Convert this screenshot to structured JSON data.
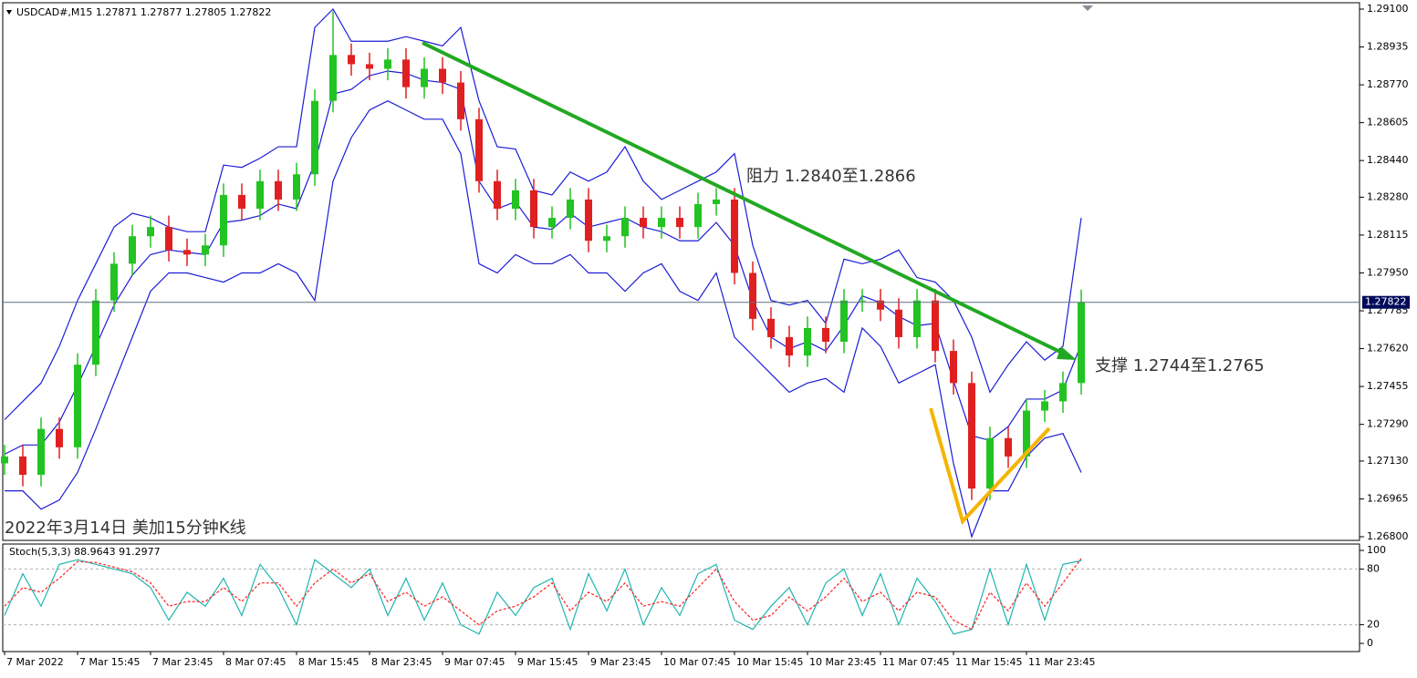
{
  "chart_data": [
    {
      "type": "candlestick",
      "title": "USDCAD#,M15",
      "header_ohlc": [
        1.27871,
        1.27877,
        1.27805,
        1.27822
      ],
      "caption": "2022年3月14日 美加15分钟K线",
      "annotations": [
        "阻力 1.2840至1.2866",
        "支撑 1.2744至1.2765"
      ],
      "current_price": 1.27822,
      "categories": [
        "7 Mar 2022",
        null,
        null,
        null,
        "7 Mar 15:45",
        null,
        null,
        null,
        "7 Mar 23:45",
        null,
        null,
        null,
        "8 Mar 07:45",
        null,
        null,
        null,
        "8 Mar 15:45",
        null,
        null,
        null,
        "8 Mar 23:45",
        null,
        null,
        null,
        "9 Mar 07:45",
        null,
        null,
        null,
        "9 Mar 15:45",
        null,
        null,
        null,
        "9 Mar 23:45",
        null,
        null,
        null,
        "10 Mar 07:45",
        null,
        null,
        null,
        "10 Mar 15:45",
        null,
        null,
        null,
        "10 Mar 23:45",
        null,
        null,
        null,
        "11 Mar 07:45",
        null,
        null,
        null,
        "11 Mar 15:45",
        null,
        null,
        null,
        "11 Mar 23:45",
        null,
        null,
        null
      ],
      "open": [
        1.2712,
        1.2715,
        1.2707,
        1.2727,
        1.2719,
        1.2755,
        1.2783,
        1.2799,
        1.2811,
        1.2815,
        1.2805,
        1.2803,
        1.2807,
        1.2829,
        1.2823,
        1.2835,
        1.2827,
        1.2838,
        1.287,
        1.289,
        1.2886,
        1.2884,
        1.2888,
        1.2876,
        1.2884,
        1.2878,
        1.2862,
        1.2835,
        1.2823,
        1.2831,
        1.2815,
        1.2819,
        1.2827,
        1.2809,
        1.2811,
        1.2819,
        1.2815,
        1.2819,
        1.2815,
        1.2825,
        1.2827,
        1.2795,
        1.2775,
        1.2767,
        1.2759,
        1.2771,
        1.2765,
        1.2783,
        1.2783,
        1.2779,
        1.2767,
        1.2783,
        1.2761,
        1.2747,
        1.2701,
        1.2723,
        1.2715,
        1.2735,
        1.2739,
        1.2747
      ],
      "high": [
        1.272,
        1.272,
        1.2732,
        1.2732,
        1.276,
        1.2788,
        1.2804,
        1.2816,
        1.282,
        1.282,
        1.281,
        1.2812,
        1.2834,
        1.2834,
        1.284,
        1.284,
        1.2843,
        1.2875,
        1.2909,
        1.2895,
        1.2891,
        1.2893,
        1.2893,
        1.2889,
        1.2889,
        1.2883,
        1.2867,
        1.284,
        1.2836,
        1.2836,
        1.2824,
        1.2832,
        1.2832,
        1.2816,
        1.2824,
        1.2824,
        1.2824,
        1.2824,
        1.283,
        1.2832,
        1.2832,
        1.28,
        1.278,
        1.2772,
        1.2776,
        1.2776,
        1.2788,
        1.2788,
        1.2788,
        1.2784,
        1.2788,
        1.2788,
        1.2766,
        1.2752,
        1.2728,
        1.2728,
        1.274,
        1.2744,
        1.2752,
        1.27877
      ],
      "low": [
        1.2707,
        1.2702,
        1.2702,
        1.2714,
        1.2714,
        1.275,
        1.2778,
        1.2794,
        1.2806,
        1.28,
        1.2798,
        1.2798,
        1.2802,
        1.2818,
        1.2818,
        1.2822,
        1.2822,
        1.2833,
        1.2865,
        1.2881,
        1.2879,
        1.2879,
        1.2871,
        1.2871,
        1.2873,
        1.2857,
        1.283,
        1.2818,
        1.2818,
        1.281,
        1.281,
        1.2814,
        1.2804,
        1.2804,
        1.2806,
        1.281,
        1.281,
        1.281,
        1.281,
        1.282,
        1.279,
        1.277,
        1.2762,
        1.2754,
        1.2754,
        1.276,
        1.276,
        1.2778,
        1.2774,
        1.2762,
        1.2762,
        1.2756,
        1.2742,
        1.2696,
        1.2696,
        1.271,
        1.271,
        1.273,
        1.2734,
        1.2742
      ],
      "close": [
        1.2715,
        1.2707,
        1.2727,
        1.2719,
        1.2755,
        1.2783,
        1.2799,
        1.2811,
        1.2815,
        1.2805,
        1.2803,
        1.2807,
        1.2829,
        1.2823,
        1.2835,
        1.2827,
        1.2838,
        1.287,
        1.289,
        1.2886,
        1.2884,
        1.2888,
        1.2876,
        1.2884,
        1.2878,
        1.2862,
        1.2835,
        1.2823,
        1.2831,
        1.2815,
        1.2819,
        1.2827,
        1.2809,
        1.2811,
        1.2819,
        1.2815,
        1.2819,
        1.2815,
        1.2825,
        1.2827,
        1.2795,
        1.2775,
        1.2767,
        1.2759,
        1.2771,
        1.2765,
        1.2783,
        1.2783,
        1.2779,
        1.2767,
        1.2783,
        1.2761,
        1.2747,
        1.2701,
        1.2723,
        1.2715,
        1.2735,
        1.2739,
        1.2747,
        1.27822
      ],
      "up_color": "#22c322",
      "down_color": "#e02020",
      "overlays": [
        {
          "color": "#1c1cd6",
          "values": [
            1.2731,
            1.2739,
            1.2747,
            1.2763,
            1.2783,
            1.2799,
            1.2815,
            1.2821,
            1.2819,
            1.2815,
            1.2813,
            1.2813,
            1.2842,
            1.2841,
            1.2845,
            1.285,
            1.285,
            1.2902,
            1.291,
            1.2896,
            1.2896,
            1.2896,
            1.2898,
            1.2896,
            1.2894,
            1.2902,
            1.287,
            1.285,
            1.2849,
            1.2831,
            1.2829,
            1.2839,
            1.2835,
            1.2839,
            1.285,
            1.2835,
            1.2827,
            1.2831,
            1.2835,
            1.2839,
            1.2847,
            1.2807,
            1.2783,
            1.2781,
            1.2783,
            1.2773,
            1.2801,
            1.2799,
            1.2801,
            1.2805,
            1.2793,
            1.2791,
            1.2783,
            1.2767,
            1.2743,
            1.2755,
            1.2765,
            1.2757,
            1.2763,
            1.2819
          ]
        },
        {
          "color": "#1c1cd6",
          "values": [
            1.2716,
            1.272,
            1.272,
            1.273,
            1.2746,
            1.2763,
            1.2781,
            1.2794,
            1.2803,
            1.2805,
            1.2804,
            1.2803,
            1.2817,
            1.2818,
            1.282,
            1.2825,
            1.2823,
            1.2843,
            1.2873,
            1.2875,
            1.2881,
            1.2883,
            1.2882,
            1.2879,
            1.2878,
            1.2875,
            1.2835,
            1.2823,
            1.2826,
            1.2815,
            1.2814,
            1.2821,
            1.2815,
            1.2817,
            1.2819,
            1.2815,
            1.2813,
            1.2809,
            1.2809,
            1.2817,
            1.2807,
            1.2783,
            1.2767,
            1.2762,
            1.2765,
            1.2761,
            1.2772,
            1.2785,
            1.2782,
            1.2776,
            1.2772,
            1.2773,
            1.2748,
            1.2724,
            1.2722,
            1.2728,
            1.274,
            1.274,
            1.2744,
            1.2764
          ]
        },
        {
          "color": "#1c1cd6",
          "values": [
            1.27,
            1.27,
            1.2692,
            1.2696,
            1.2708,
            1.2727,
            1.2747,
            1.2767,
            1.2787,
            1.2795,
            1.2795,
            1.2793,
            1.2791,
            1.2795,
            1.2795,
            1.2799,
            1.2795,
            1.2783,
            1.2835,
            1.2854,
            1.2866,
            1.287,
            1.2866,
            1.2862,
            1.2862,
            1.2847,
            1.2799,
            1.2795,
            1.2803,
            1.2799,
            1.2799,
            1.2803,
            1.2795,
            1.2795,
            1.2787,
            1.2795,
            1.2799,
            1.2787,
            1.2783,
            1.2795,
            1.2767,
            1.2759,
            1.2751,
            1.2743,
            1.2747,
            1.2749,
            1.2743,
            1.2771,
            1.2763,
            1.2747,
            1.2751,
            1.2755,
            1.2712,
            1.268,
            1.27,
            1.27,
            1.2715,
            1.2723,
            1.2725,
            1.2708
          ]
        }
      ],
      "ylim": [
        1.268,
        1.291
      ],
      "yticks": [
        {
          "value": 1.291,
          "label": "1.29100"
        },
        {
          "value": 1.28935,
          "label": "1.28935"
        },
        {
          "value": 1.2877,
          "label": "1.28770"
        },
        {
          "value": 1.28605,
          "label": "1.28605"
        },
        {
          "value": 1.2844,
          "label": "1.28440"
        },
        {
          "value": 1.2828,
          "label": "1.28280"
        },
        {
          "value": 1.28115,
          "label": "1.28115"
        },
        {
          "value": 1.2795,
          "label": "1.27950"
        },
        {
          "value": 1.27785,
          "label": "1.27785"
        },
        {
          "value": 1.2762,
          "label": "1.27620"
        },
        {
          "value": 1.27455,
          "label": "1.27455"
        },
        {
          "value": 1.2729,
          "label": "1.27290"
        },
        {
          "value": 1.2713,
          "label": "1.27130"
        },
        {
          "value": 1.26965,
          "label": "1.26965"
        },
        {
          "value": 1.268,
          "label": "1.26800"
        }
      ]
    },
    {
      "type": "line",
      "title": "Stoch(5,3,3)",
      "series": [
        {
          "color": "#1fb5b0",
          "values": [
            30,
            75,
            40,
            85,
            90,
            85,
            80,
            75,
            60,
            25,
            55,
            40,
            70,
            30,
            85,
            60,
            20,
            90,
            75,
            60,
            80,
            30,
            70,
            25,
            65,
            20,
            10,
            55,
            30,
            60,
            70,
            15,
            75,
            35,
            80,
            20,
            60,
            30,
            75,
            85,
            25,
            15,
            40,
            60,
            20,
            65,
            80,
            30,
            75,
            20,
            70,
            45,
            10,
            15,
            80,
            20,
            85,
            25,
            85,
            88.9643
          ]
        },
        {
          "color": "#ff2020",
          "dashed": true,
          "values": [
            40,
            60,
            55,
            70,
            88,
            87,
            82,
            77,
            65,
            40,
            45,
            45,
            60,
            45,
            65,
            65,
            40,
            65,
            80,
            65,
            75,
            45,
            55,
            40,
            50,
            35,
            20,
            35,
            40,
            50,
            65,
            35,
            55,
            45,
            65,
            40,
            45,
            40,
            60,
            80,
            45,
            25,
            30,
            50,
            35,
            50,
            70,
            45,
            55,
            35,
            55,
            50,
            25,
            15,
            55,
            35,
            65,
            40,
            65,
            91.2977
          ]
        }
      ],
      "ylim": [
        0,
        100
      ],
      "yticks": [
        0,
        20,
        80,
        100
      ],
      "grid_levels": [
        20,
        80
      ]
    }
  ]
}
